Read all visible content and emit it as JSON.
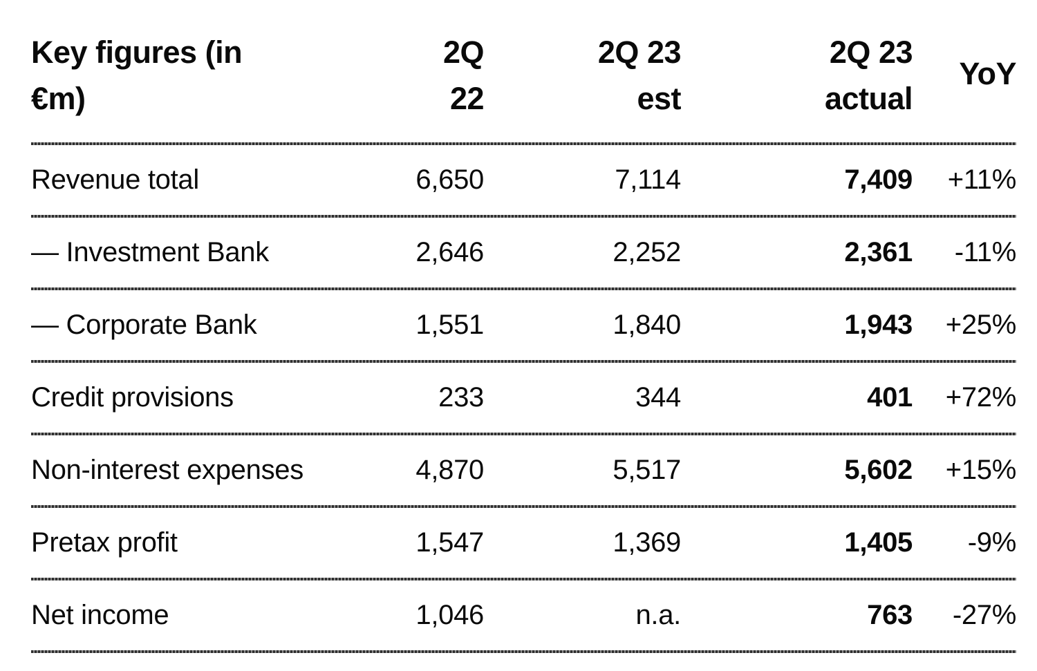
{
  "table": {
    "title": "Key figures (in €m)",
    "columns": [
      {
        "label": "Key figures (in\n€m)",
        "align": "left"
      },
      {
        "label": "2Q\n22",
        "align": "right"
      },
      {
        "label": "2Q 23\nest",
        "align": "right"
      },
      {
        "label": "2Q 23\nactual",
        "align": "right"
      },
      {
        "label": "YoY",
        "align": "right"
      }
    ],
    "rows": [
      {
        "label": "Revenue total",
        "q2_22": "6,650",
        "q2_23_est": "7,114",
        "q2_23_actual": "7,409",
        "yoy": "+11%"
      },
      {
        "label": "— Investment Bank",
        "q2_22": "2,646",
        "q2_23_est": "2,252",
        "q2_23_actual": "2,361",
        "yoy": "-11%"
      },
      {
        "label": "— Corporate Bank",
        "q2_22": "1,551",
        "q2_23_est": "1,840",
        "q2_23_actual": "1,943",
        "yoy": "+25%"
      },
      {
        "label": "Credit provisions",
        "q2_22": "233",
        "q2_23_est": "344",
        "q2_23_actual": "401",
        "yoy": "+72%"
      },
      {
        "label": "Non-interest expenses",
        "q2_22": "4,870",
        "q2_23_est": "5,517",
        "q2_23_actual": "5,602",
        "yoy": "+15%"
      },
      {
        "label": "Pretax profit",
        "q2_22": "1,547",
        "q2_23_est": "1,369",
        "q2_23_actual": "1,405",
        "yoy": "-9%"
      },
      {
        "label": "Net income",
        "q2_22": "1,046",
        "q2_23_est": "n.a.",
        "q2_23_actual": "763",
        "yoy": "-27%"
      }
    ]
  },
  "chart_data": {
    "type": "table",
    "title": "Key figures (in €m)",
    "columns": [
      "Key figures (in €m)",
      "2Q 22",
      "2Q 23 est",
      "2Q 23 actual",
      "YoY"
    ],
    "rows": [
      [
        "Revenue total",
        "6,650",
        "7,114",
        "7,409",
        "+11%"
      ],
      [
        "— Investment Bank",
        "2,646",
        "2,252",
        "2,361",
        "-11%"
      ],
      [
        "— Corporate Bank",
        "1,551",
        "1,840",
        "1,943",
        "+25%"
      ],
      [
        "Credit provisions",
        "233",
        "344",
        "401",
        "+72%"
      ],
      [
        "Non-interest expenses",
        "4,870",
        "5,517",
        "5,602",
        "+15%"
      ],
      [
        "Pretax profit",
        "1,547",
        "1,369",
        "1,405",
        "-9%"
      ],
      [
        "Net income",
        "1,046",
        "n.a.",
        "763",
        "-27%"
      ]
    ],
    "notes": "2Q 23 actual column rendered in bold; YoY values right-aligned"
  },
  "colors": {
    "background": "#ffffff",
    "text": "#0a0a0a",
    "rule_dark": "#2f2f2f",
    "rule_light": "#8a8a8a"
  }
}
